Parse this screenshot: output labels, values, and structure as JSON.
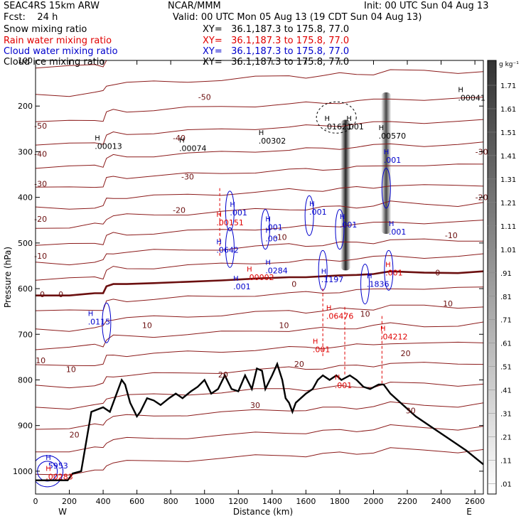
{
  "header": {
    "model": "SEAC4RS 15km ARW",
    "forecast": "Fcst:    24 h",
    "center": "NCAR/MMM",
    "init": "Init: 00 UTC Sun 04 Aug 13",
    "valid": "Valid: 00 UTC Mon 05 Aug 13 (19 CDT Sun 04 Aug 13)",
    "fields": [
      {
        "label": "Snow mixing ratio",
        "xy": "XY=   36.1,187.3 to 175.8, 77.0",
        "color": "#000000"
      },
      {
        "label": "Rain water mixing ratio",
        "xy": "XY=   36.1,187.3 to 175.8, 77.0",
        "color": "#e00000"
      },
      {
        "label": "Cloud water mixing ratio",
        "xy": "XY=   36.1,187.3 to 175.8, 77.0",
        "color": "#0000cc"
      },
      {
        "label": "Cloud ice mixing ratio",
        "xy": "XY=   36.1,187.3 to 175.8, 77.0",
        "color": "#000000"
      }
    ]
  },
  "chart_data": {
    "type": "cross-section",
    "xlabel": "Distance (km)",
    "ylabel": "Pressure (hPa)",
    "xlim": [
      0,
      2650
    ],
    "ylim": [
      1050,
      100
    ],
    "x_ticks": [
      "0",
      "200",
      "400",
      "600",
      "800",
      "1000",
      "1200",
      "1400",
      "1600",
      "1800",
      "2000",
      "2200",
      "2400",
      "2600"
    ],
    "y_ticks": [
      "100",
      "200",
      "300",
      "400",
      "500",
      "600",
      "700",
      "800",
      "900",
      "1000"
    ],
    "x_end_labels": {
      "left": "W",
      "right": "E"
    },
    "colorbar": {
      "unit": "g kg⁻¹",
      "levels": [
        "1.71",
        "1.61",
        "1.51",
        "1.41",
        "1.31",
        "1.21",
        "1.11",
        "1.01",
        ".91",
        ".81",
        ".71",
        ".61",
        ".51",
        ".41",
        ".31",
        ".21",
        ".11",
        ".01"
      ]
    },
    "terrain_pressure": [
      [
        0,
        1020
      ],
      [
        120,
        1020
      ],
      [
        190,
        1020
      ],
      [
        220,
        1005
      ],
      [
        270,
        1000
      ],
      [
        330,
        870
      ],
      [
        400,
        860
      ],
      [
        440,
        870
      ],
      [
        480,
        830
      ],
      [
        510,
        800
      ],
      [
        530,
        810
      ],
      [
        560,
        850
      ],
      [
        600,
        880
      ],
      [
        620,
        870
      ],
      [
        660,
        840
      ],
      [
        700,
        845
      ],
      [
        740,
        855
      ],
      [
        790,
        840
      ],
      [
        830,
        830
      ],
      [
        870,
        840
      ],
      [
        920,
        825
      ],
      [
        960,
        815
      ],
      [
        1000,
        800
      ],
      [
        1040,
        830
      ],
      [
        1080,
        820
      ],
      [
        1120,
        790
      ],
      [
        1160,
        820
      ],
      [
        1200,
        825
      ],
      [
        1240,
        790
      ],
      [
        1280,
        820
      ],
      [
        1310,
        775
      ],
      [
        1340,
        780
      ],
      [
        1360,
        820
      ],
      [
        1400,
        790
      ],
      [
        1430,
        765
      ],
      [
        1460,
        800
      ],
      [
        1480,
        840
      ],
      [
        1500,
        850
      ],
      [
        1520,
        870
      ],
      [
        1540,
        850
      ],
      [
        1570,
        840
      ],
      [
        1600,
        830
      ],
      [
        1640,
        820
      ],
      [
        1670,
        800
      ],
      [
        1700,
        790
      ],
      [
        1740,
        800
      ],
      [
        1780,
        790
      ],
      [
        1810,
        800
      ],
      [
        1860,
        790
      ],
      [
        1900,
        800
      ],
      [
        1940,
        815
      ],
      [
        1980,
        820
      ],
      [
        2030,
        810
      ],
      [
        2060,
        810
      ],
      [
        2100,
        830
      ],
      [
        2160,
        850
      ],
      [
        2250,
        880
      ],
      [
        2350,
        905
      ],
      [
        2450,
        930
      ],
      [
        2550,
        955
      ],
      [
        2650,
        985
      ]
    ],
    "isotherm_zero_pressure": [
      [
        0,
        615
      ],
      [
        200,
        615
      ],
      [
        350,
        610
      ],
      [
        400,
        610
      ],
      [
        420,
        595
      ],
      [
        460,
        590
      ],
      [
        540,
        590
      ],
      [
        700,
        588
      ],
      [
        900,
        585
      ],
      [
        1100,
        582
      ],
      [
        1300,
        578
      ],
      [
        1500,
        575
      ],
      [
        1600,
        575
      ],
      [
        1700,
        573
      ],
      [
        1800,
        571
      ],
      [
        1900,
        570
      ],
      [
        2000,
        568
      ],
      [
        2100,
        562
      ],
      [
        2300,
        565
      ],
      [
        2500,
        566
      ],
      [
        2650,
        562
      ]
    ],
    "temperature_labels": [
      {
        "text": "-50",
        "x": 1000,
        "p": 180
      },
      {
        "text": "-50",
        "x": 30,
        "p": 243
      },
      {
        "text": "-40",
        "x": 850,
        "p": 270
      },
      {
        "text": "-40",
        "x": 30,
        "p": 305
      },
      {
        "text": "-30",
        "x": 900,
        "p": 355
      },
      {
        "text": "-30",
        "x": 30,
        "p": 370
      },
      {
        "text": "-30",
        "x": 2640,
        "p": 300
      },
      {
        "text": "-20",
        "x": 850,
        "p": 428
      },
      {
        "text": "-20",
        "x": 30,
        "p": 447
      },
      {
        "text": "-20",
        "x": 2640,
        "p": 400
      },
      {
        "text": "-10",
        "x": 1450,
        "p": 487
      },
      {
        "text": "-10",
        "x": 30,
        "p": 528
      },
      {
        "text": "-10",
        "x": 2460,
        "p": 483
      },
      {
        "text": "0",
        "x": 40,
        "p": 612
      },
      {
        "text": "0",
        "x": 150,
        "p": 612
      },
      {
        "text": "0",
        "x": 1530,
        "p": 590
      },
      {
        "text": "0",
        "x": 2380,
        "p": 565
      },
      {
        "text": "10",
        "x": 1470,
        "p": 680
      },
      {
        "text": "10",
        "x": 1950,
        "p": 655
      },
      {
        "text": "10",
        "x": 2440,
        "p": 633
      },
      {
        "text": "10",
        "x": 660,
        "p": 680
      },
      {
        "text": "10",
        "x": 210,
        "p": 777
      },
      {
        "text": "10",
        "x": 30,
        "p": 757
      },
      {
        "text": "20",
        "x": 1110,
        "p": 788
      },
      {
        "text": "20",
        "x": 1560,
        "p": 765
      },
      {
        "text": "20",
        "x": 2190,
        "p": 742
      },
      {
        "text": "20",
        "x": 230,
        "p": 920
      },
      {
        "text": "30",
        "x": 2220,
        "p": 867
      },
      {
        "text": "30",
        "x": 1300,
        "p": 855
      }
    ],
    "extrema_labels": [
      {
        "text": ".00041",
        "x": 2500,
        "p": 182,
        "color": "#000000"
      },
      {
        "text": ".00013",
        "x": 350,
        "p": 288,
        "color": "#000000"
      },
      {
        "text": ".00074",
        "x": 850,
        "p": 292,
        "color": "#000000"
      },
      {
        "text": ".00302",
        "x": 1320,
        "p": 276,
        "color": "#000000"
      },
      {
        "text": ".01621",
        "x": 1710,
        "p": 245,
        "color": "#000000"
      },
      {
        "text": ".001",
        "x": 1840,
        "p": 245,
        "color": "#000000"
      },
      {
        "text": ".00570",
        "x": 2030,
        "p": 265,
        "color": "#000000"
      },
      {
        "text": ".001",
        "x": 2060,
        "p": 318,
        "color": "#0000cc"
      },
      {
        "text": ".001",
        "x": 1620,
        "p": 432,
        "color": "#0000cc"
      },
      {
        "text": ".001",
        "x": 1800,
        "p": 460,
        "color": "#0000cc"
      },
      {
        "text": ".001",
        "x": 2090,
        "p": 475,
        "color": "#0000cc"
      },
      {
        "text": ".001",
        "x": 1150,
        "p": 433,
        "color": "#0000cc"
      },
      {
        "text": ".00151",
        "x": 1070,
        "p": 455,
        "color": "#e00000"
      },
      {
        "text": ".001",
        "x": 1360,
        "p": 465,
        "color": "#0000cc"
      },
      {
        "text": ".00",
        "x": 1360,
        "p": 490,
        "color": "#0000cc"
      },
      {
        "text": ".0642",
        "x": 1070,
        "p": 515,
        "color": "#0000cc"
      },
      {
        "text": ".0284",
        "x": 1360,
        "p": 560,
        "color": "#0000cc"
      },
      {
        "text": ".00002",
        "x": 1250,
        "p": 575,
        "color": "#e00000"
      },
      {
        "text": ".001",
        "x": 1170,
        "p": 595,
        "color": "#0000cc"
      },
      {
        "text": ".1197",
        "x": 1690,
        "p": 580,
        "color": "#0000cc"
      },
      {
        "text": ".1836",
        "x": 1960,
        "p": 590,
        "color": "#0000cc"
      },
      {
        "text": ".001",
        "x": 2070,
        "p": 565,
        "color": "#e00000"
      },
      {
        "text": ".06476",
        "x": 1720,
        "p": 660,
        "color": "#e00000"
      },
      {
        "text": ".04212",
        "x": 2040,
        "p": 705,
        "color": "#e00000"
      },
      {
        "text": ".001",
        "x": 1640,
        "p": 733,
        "color": "#e00000"
      },
      {
        "text": ".001",
        "x": 1770,
        "p": 812,
        "color": "#e00000"
      },
      {
        "text": ".0115",
        "x": 310,
        "p": 672,
        "color": "#0000cc"
      },
      {
        "text": ".5953",
        "x": 60,
        "p": 988,
        "color": "#0000cc"
      },
      {
        "text": ".00283",
        "x": 60,
        "p": 1012,
        "color": "#e00000"
      }
    ],
    "snow_columns": [
      {
        "x": 1835,
        "p_top": 230,
        "p_bottom": 560,
        "max": 1.0
      },
      {
        "x": 2075,
        "p_top": 170,
        "p_bottom": 480,
        "max": 0.85
      }
    ],
    "grid": false
  }
}
